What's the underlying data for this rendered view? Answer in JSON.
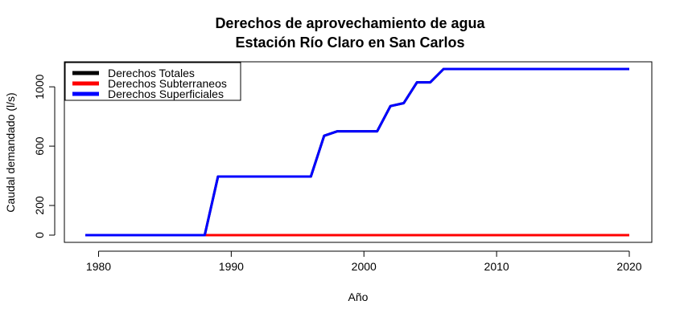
{
  "chart_data": {
    "type": "line",
    "title": [
      "Derechos de aprovechamiento de agua",
      "Estación Río Claro en San Carlos"
    ],
    "xlabel": "Año",
    "ylabel": "Caudal demandado (l/s)",
    "xlim": [
      1979,
      2020
    ],
    "ylim": [
      0,
      1120
    ],
    "xticks": [
      1980,
      1990,
      2000,
      2010,
      2020
    ],
    "yticks": [
      0,
      200,
      600,
      1000
    ],
    "legend": "top-left",
    "grid": false,
    "x": [
      1979,
      1980,
      1981,
      1982,
      1983,
      1984,
      1985,
      1986,
      1987,
      1988,
      1989,
      1990,
      1991,
      1992,
      1993,
      1994,
      1995,
      1996,
      1997,
      1998,
      1999,
      2000,
      2001,
      2002,
      2003,
      2004,
      2005,
      2006,
      2007,
      2008,
      2009,
      2010,
      2011,
      2012,
      2013,
      2014,
      2015,
      2016,
      2017,
      2018,
      2019,
      2020
    ],
    "series": [
      {
        "name": "Derechos Totales",
        "color": "#000000",
        "values": [
          0,
          0,
          0,
          0,
          0,
          0,
          0,
          0,
          0,
          0,
          395,
          395,
          395,
          395,
          395,
          395,
          395,
          395,
          670,
          700,
          700,
          700,
          700,
          870,
          890,
          1030,
          1030,
          1120,
          1120,
          1120,
          1120,
          1120,
          1120,
          1120,
          1120,
          1120,
          1120,
          1120,
          1120,
          1120,
          1120,
          1120
        ]
      },
      {
        "name": "Derechos Subterraneos",
        "color": "#ff0000",
        "values": [
          0,
          0,
          0,
          0,
          0,
          0,
          0,
          0,
          0,
          0,
          0,
          0,
          0,
          0,
          0,
          0,
          0,
          0,
          0,
          0,
          0,
          0,
          0,
          0,
          0,
          0,
          0,
          0,
          0,
          0,
          0,
          0,
          0,
          0,
          0,
          0,
          0,
          0,
          0,
          0,
          0,
          0
        ]
      },
      {
        "name": "Derechos Superficiales",
        "color": "#0000ff",
        "values": [
          0,
          0,
          0,
          0,
          0,
          0,
          0,
          0,
          0,
          0,
          395,
          395,
          395,
          395,
          395,
          395,
          395,
          395,
          670,
          700,
          700,
          700,
          700,
          870,
          890,
          1030,
          1030,
          1120,
          1120,
          1120,
          1120,
          1120,
          1120,
          1120,
          1120,
          1120,
          1120,
          1120,
          1120,
          1120,
          1120,
          1120
        ]
      }
    ]
  }
}
